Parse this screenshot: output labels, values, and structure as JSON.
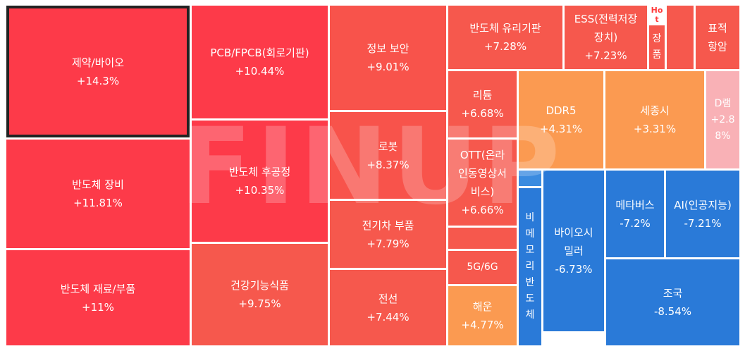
{
  "chart_data": {
    "type": "treemap",
    "tiles": [
      {
        "name": "제약/바이오",
        "value": "+14.3%",
        "color": "#fd3a49",
        "selected": true
      },
      {
        "name": "PCB/FPCB(회로기판)",
        "value": "+10.44%",
        "color": "#fd3a49"
      },
      {
        "name": "정보 보안",
        "value": "+9.01%",
        "color": "#f8534b"
      },
      {
        "name": "반도체 유리기판",
        "value": "+7.28%",
        "color": "#f6584d"
      },
      {
        "name": "ESS(전력저장\n장치)",
        "value": "+7.23%",
        "color": "#f6584d"
      },
      {
        "name": "장품",
        "value": "",
        "color": "#f6584d",
        "badge": "Ho\nt"
      },
      {
        "name": "",
        "value": "",
        "color": "#f6584d"
      },
      {
        "name": "표적\n항암",
        "value": "",
        "color": "#f6584d"
      },
      {
        "name": "반도체 장비",
        "value": "+11.81%",
        "color": "#fd3a49"
      },
      {
        "name": "반도체 후공정",
        "value": "+10.35%",
        "color": "#fd3a49"
      },
      {
        "name": "로봇",
        "value": "+8.37%",
        "color": "#f8534b"
      },
      {
        "name": "리튬",
        "value": "+6.68%",
        "color": "#f6584d"
      },
      {
        "name": "OTT(온라\n인동영상서\n비스)",
        "value": "+6.66%",
        "color": "#f6584d"
      },
      {
        "name": "DDR5",
        "value": "+4.31%",
        "color": "#fb9a51"
      },
      {
        "name": "세종시",
        "value": "+3.31%",
        "color": "#fb9a51"
      },
      {
        "name": "D램\n+2.8\n8%",
        "value": "",
        "color": "#f9b1b6"
      },
      {
        "name": "반도체 재료/부품",
        "value": "+11%",
        "color": "#fd3a49"
      },
      {
        "name": "건강기능식품",
        "value": "+9.75%",
        "color": "#f6584d"
      },
      {
        "name": "전기차 부품",
        "value": "+7.79%",
        "color": "#f6584d"
      },
      {
        "name": "",
        "value": "",
        "color": "#f6584d"
      },
      {
        "name": "5G/6G",
        "value": "",
        "color": "#f6584d"
      },
      {
        "name": "해운",
        "value": "+4.77%",
        "color": "#fb9a51"
      },
      {
        "name": "전선",
        "value": "+7.44%",
        "color": "#f6584d"
      },
      {
        "name": "",
        "value": "",
        "color": "#3a8be0"
      },
      {
        "name": "비\n메\n모\n리\n반\n도\n체",
        "value": "",
        "color": "#2a7ad8"
      },
      {
        "name": "바이오시\n밀러",
        "value": "-6.73%",
        "color": "#2a7ad8"
      },
      {
        "name": "메타버스",
        "value": "-7.2%",
        "color": "#2a7ad8"
      },
      {
        "name": "AI(인공지능)",
        "value": "-7.21%",
        "color": "#2a7ad8"
      },
      {
        "name": "조국",
        "value": "-8.54%",
        "color": "#2a7ad8"
      }
    ]
  },
  "watermark": "FINUP"
}
